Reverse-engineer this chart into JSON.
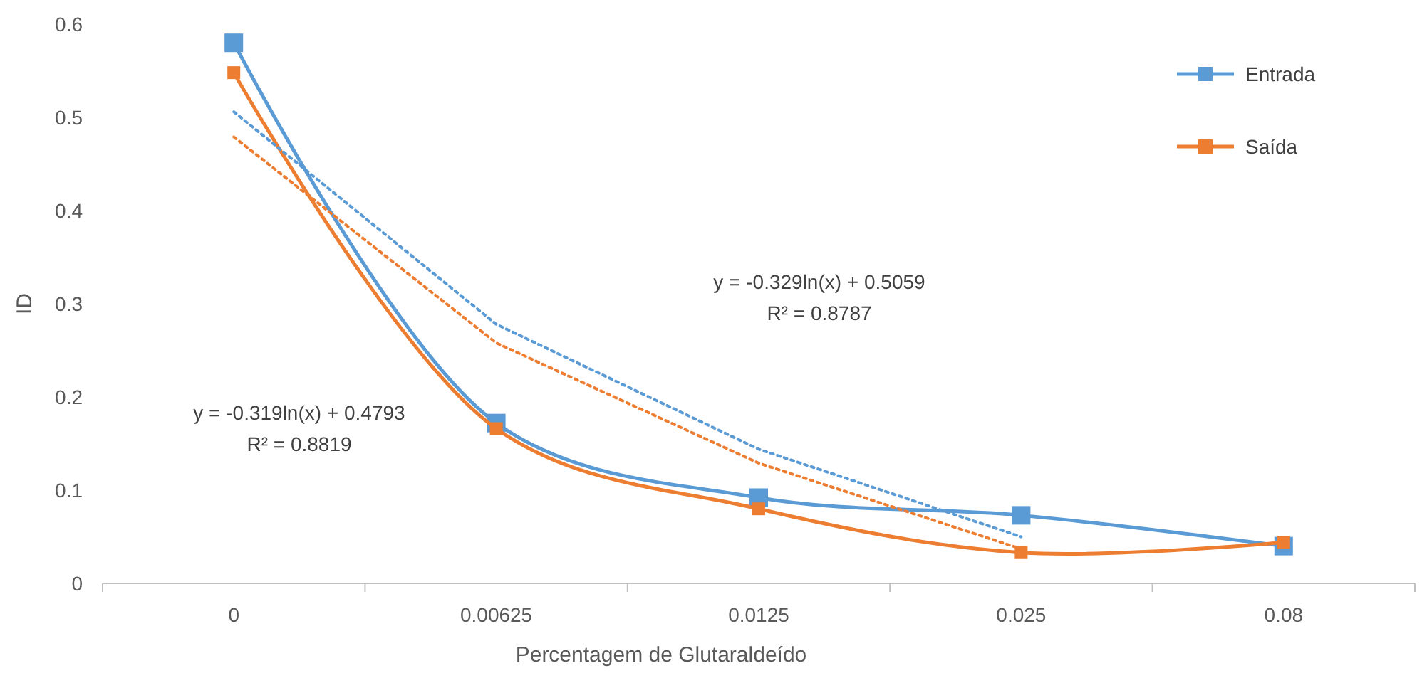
{
  "chart_data": {
    "type": "line",
    "xlabel": "Percentagem de Glutaraldeído",
    "ylabel": "ID",
    "categories": [
      "0",
      "0.00625",
      "0.0125",
      "0.025",
      "0.08"
    ],
    "series": [
      {
        "name": "Entrada",
        "color": "#5b9bd5",
        "values": [
          0.58,
          0.172,
          0.092,
          0.073,
          0.04
        ],
        "marker": "square",
        "line_style": "solid"
      },
      {
        "name": "Saída",
        "color": "#ed7d31",
        "values": [
          0.548,
          0.166,
          0.08,
          0.033,
          0.044
        ],
        "marker": "square",
        "line_style": "solid"
      },
      {
        "color": "#5b9bd5",
        "values": [
          0.506,
          0.278,
          0.144,
          0.05,
          null
        ],
        "marker": "none",
        "line_style": "dotted"
      },
      {
        "color": "#ed7d31",
        "values": [
          0.479,
          0.258,
          0.129,
          0.037,
          null
        ],
        "marker": "none",
        "line_style": "dotted"
      }
    ],
    "ylim": [
      0,
      0.6
    ],
    "yticks": [
      0,
      0.1,
      0.2,
      0.3,
      0.4,
      0.5,
      0.6
    ],
    "grid": false,
    "legend": "top right",
    "annotations": [
      "y = -0.329ln(x) + 0.5059\nR² = 0.8787",
      "y = -0.319ln(x) + 0.4793\nR² = 0.8819"
    ]
  }
}
